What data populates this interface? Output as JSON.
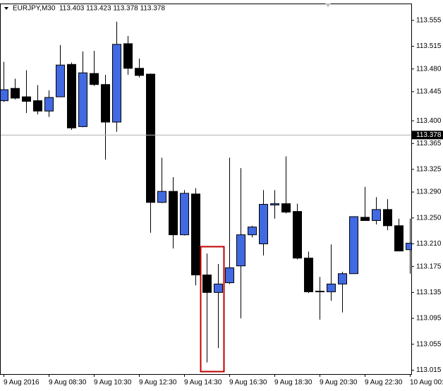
{
  "chart_data": {
    "type": "candlestick",
    "title": "EURJPY,M30  113.403 113.423 113.378 113.378",
    "categories": [
      "9 Aug 2016",
      null,
      null,
      null,
      "9 Aug 08:30",
      null,
      null,
      null,
      "9 Aug 10:30",
      null,
      null,
      null,
      "9 Aug 12:30",
      null,
      null,
      null,
      "9 Aug 14:30",
      null,
      null,
      null,
      "9 Aug 16:30",
      null,
      null,
      null,
      "9 Aug 18:30",
      null,
      null,
      null,
      "9 Aug 20:30",
      null,
      null,
      null,
      "9 Aug 22:30",
      null,
      null,
      null,
      "10 Aug 00:"
    ],
    "open": [
      113.431,
      113.45,
      113.437,
      113.431,
      113.415,
      113.437,
      113.487,
      113.391,
      113.473,
      113.456,
      113.398,
      113.519,
      113.481,
      113.472,
      113.274,
      113.291,
      113.224,
      113.287,
      113.162,
      113.135,
      113.15,
      113.176,
      113.224,
      113.21,
      113.27,
      113.272,
      113.26,
      113.188,
      113.137,
      113.136,
      113.148,
      113.164,
      113.251,
      113.246,
      113.263,
      113.238,
      113.201
    ],
    "high": [
      113.491,
      113.465,
      113.478,
      113.455,
      113.447,
      113.517,
      113.49,
      113.507,
      113.508,
      113.471,
      113.553,
      113.531,
      113.496,
      113.473,
      113.343,
      113.313,
      113.293,
      113.296,
      113.195,
      113.179,
      113.343,
      113.327,
      113.238,
      113.293,
      113.293,
      113.345,
      113.272,
      113.198,
      113.159,
      113.209,
      113.167,
      113.252,
      113.298,
      113.282,
      113.279,
      113.249,
      113.249
    ],
    "low": [
      113.429,
      113.433,
      113.412,
      113.41,
      113.406,
      113.437,
      113.386,
      113.39,
      113.454,
      113.34,
      113.383,
      113.471,
      113.467,
      113.227,
      113.273,
      113.203,
      113.223,
      113.146,
      113.027,
      113.049,
      113.148,
      113.095,
      113.22,
      113.192,
      113.249,
      113.257,
      113.186,
      113.134,
      113.093,
      113.122,
      113.104,
      113.164,
      113.246,
      113.24,
      113.231,
      113.199,
      113.164
    ],
    "close": [
      113.448,
      113.435,
      113.43,
      113.415,
      113.436,
      113.486,
      113.389,
      113.474,
      113.456,
      113.398,
      113.518,
      113.481,
      113.47,
      113.274,
      113.291,
      113.224,
      113.288,
      113.162,
      113.135,
      113.148,
      113.173,
      113.224,
      113.236,
      113.271,
      113.272,
      113.259,
      113.188,
      113.136,
      113.136,
      113.148,
      113.164,
      113.252,
      113.246,
      113.263,
      113.238,
      113.199,
      113.211
    ],
    "up_color": "#4169e1",
    "down_color": "#000000",
    "last_price": 113.378,
    "ylim": [
      113.009,
      113.581
    ],
    "yticks": [
      113.555,
      113.515,
      {
        "value": 113.48,
        "label": "113.480"
      },
      113.445,
      {
        "value": 113.4,
        "label": "113.400"
      },
      113.365,
      113.325,
      {
        "value": 113.29,
        "label": "113.290"
      },
      {
        "value": 113.25,
        "label": "113.250"
      },
      {
        "value": 113.21,
        "label": "113.210"
      },
      113.175,
      113.135,
      113.095,
      113.055,
      113.015
    ]
  }
}
